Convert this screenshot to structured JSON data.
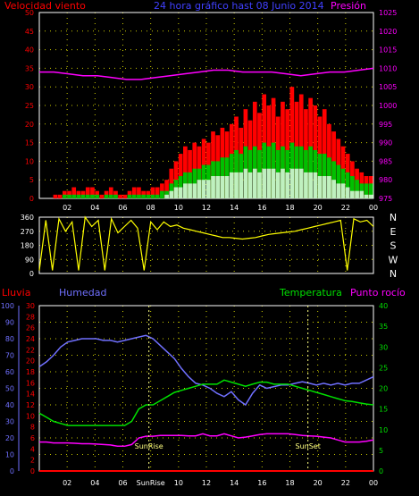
{
  "header": {
    "left_label": "Velocidad viento",
    "center_label": "24 hora gráfico hast 08 Junio 2014",
    "right_label": "Presión"
  },
  "panel3_labels": {
    "lluvia": "Lluvia",
    "humedad": "Humedad",
    "temperatura": "Temperatura",
    "punto_rocio": "Punto rocío"
  },
  "colors": {
    "wind": "#ff0000",
    "gust_green": "#00c000",
    "white_bars": "#ffffff",
    "pale_green": "#c0f0c0",
    "pressure": "#ff00ff",
    "direction": "#ffff00",
    "humidity": "#7070ff",
    "temperature": "#00e000",
    "dewpoint": "#ff00ff",
    "rain": "#ff0000",
    "sun": "#ffff80",
    "grid": "#ffff00",
    "axis": "#ffffff"
  },
  "chart_data": [
    {
      "type": "bar",
      "panel": "wind_pressure",
      "x_tick_labels": [
        "02",
        "04",
        "06",
        "08",
        "10",
        "12",
        "14",
        "16",
        "18",
        "20",
        "22",
        "00"
      ],
      "y_left_ticks": [
        "0",
        "5",
        "10",
        "15",
        "20",
        "25",
        "30",
        "35",
        "40",
        "45",
        "50"
      ],
      "y_right_ticks": [
        "975",
        "980",
        "985",
        "990",
        "995",
        "1000",
        "1005",
        "1010",
        "1015",
        "1020",
        "1025"
      ],
      "ylim_left": [
        0,
        50
      ],
      "ylim_right": [
        975,
        1025
      ],
      "series": [
        {
          "name": "Velocidad viento",
          "axis": "left",
          "values": [
            0,
            0,
            0,
            1,
            1,
            2,
            2,
            3,
            2,
            2,
            3,
            3,
            2,
            1,
            2,
            3,
            2,
            1,
            1,
            2,
            3,
            3,
            2,
            2,
            3,
            3,
            4,
            5,
            8,
            10,
            12,
            14,
            13,
            15,
            14,
            16,
            15,
            18,
            17,
            19,
            18,
            20,
            22,
            19,
            24,
            21,
            26,
            23,
            28,
            25,
            27,
            22,
            26,
            24,
            30,
            26,
            28,
            24,
            27,
            25,
            22,
            24,
            20,
            18,
            16,
            14,
            12,
            10,
            8,
            7,
            6,
            6
          ]
        },
        {
          "name": "",
          "axis": "left",
          "values": [
            0,
            0,
            0,
            0,
            0,
            1,
            1,
            1,
            1,
            1,
            1,
            1,
            1,
            0,
            1,
            1,
            1,
            0,
            0,
            1,
            1,
            1,
            1,
            1,
            1,
            1,
            2,
            2,
            4,
            5,
            6,
            7,
            7,
            8,
            8,
            9,
            9,
            10,
            10,
            11,
            11,
            12,
            13,
            12,
            14,
            13,
            14,
            13,
            15,
            14,
            15,
            13,
            14,
            13,
            15,
            14,
            14,
            13,
            14,
            13,
            12,
            12,
            11,
            10,
            9,
            8,
            7,
            6,
            5,
            4,
            4,
            4
          ]
        },
        {
          "name": "",
          "axis": "left",
          "values": [
            0,
            0,
            0,
            0,
            0,
            0,
            0,
            0,
            0,
            0,
            0,
            0,
            0,
            0,
            0,
            0,
            0,
            0,
            0,
            0,
            0,
            0,
            0,
            0,
            0,
            0,
            0,
            1,
            2,
            3,
            3,
            4,
            4,
            4,
            5,
            5,
            5,
            6,
            6,
            6,
            6,
            7,
            7,
            7,
            8,
            7,
            8,
            7,
            8,
            8,
            8,
            7,
            8,
            7,
            8,
            8,
            8,
            7,
            7,
            7,
            6,
            6,
            6,
            5,
            4,
            4,
            3,
            2,
            2,
            2,
            1,
            1
          ]
        },
        {
          "name": "Presión",
          "axis": "right",
          "values": [
            1009,
            1009,
            1008.5,
            1008,
            1008,
            1007.5,
            1007,
            1007,
            1007.5,
            1008,
            1008.5,
            1009,
            1009.5,
            1009.5,
            1009,
            1009,
            1009,
            1008.5,
            1008,
            1008.5,
            1009,
            1009,
            1009.5,
            1010
          ]
        }
      ]
    },
    {
      "type": "line",
      "panel": "wind_direction",
      "y_left_ticks": [
        "0",
        "90",
        "180",
        "270",
        "360"
      ],
      "y_right_labels": [
        "N",
        "W",
        "S",
        "E",
        "N"
      ],
      "ylim": [
        0,
        360
      ],
      "series": [
        {
          "name": "",
          "values": [
            20,
            340,
            20,
            350,
            270,
            330,
            20,
            360,
            300,
            340,
            20,
            350,
            260,
            300,
            340,
            290,
            20,
            330,
            280,
            330,
            300,
            310,
            290,
            280,
            270,
            260,
            250,
            240,
            230,
            230,
            225,
            220,
            225,
            230,
            240,
            250,
            255,
            260,
            265,
            270,
            280,
            290,
            300,
            310,
            320,
            330,
            340,
            20,
            350,
            330,
            340,
            300
          ]
        }
      ]
    },
    {
      "type": "line",
      "panel": "temp_humidity_rain",
      "x_tick_labels": [
        "02",
        "04",
        "06",
        "SunRise",
        "10",
        "12",
        "14",
        "16",
        "18",
        "20",
        "22",
        "00"
      ],
      "annotations": [
        "SunRise",
        "SunSet"
      ],
      "y_left_humidity_ticks": [
        "0",
        "10",
        "20",
        "30",
        "40",
        "50",
        "60",
        "70",
        "80",
        "90",
        "100"
      ],
      "y_left_rain_ticks": [
        "0",
        "2",
        "4",
        "6",
        "8",
        "10",
        "12",
        "14",
        "16",
        "18",
        "20",
        "22",
        "24",
        "26",
        "28",
        "30"
      ],
      "y_right_temp_ticks": [
        "0",
        "5",
        "10",
        "15",
        "20",
        "25",
        "30",
        "35",
        "40"
      ],
      "series": [
        {
          "name": "Humedad",
          "axis": "humidity",
          "values": [
            63,
            66,
            70,
            75,
            78,
            79,
            80,
            80,
            80,
            79,
            79,
            78,
            79,
            80,
            81,
            82,
            80,
            76,
            72,
            68,
            62,
            57,
            53,
            52,
            50,
            47,
            45,
            48,
            43,
            40,
            47,
            52,
            50,
            51,
            52,
            52,
            53,
            54,
            53,
            52,
            53,
            52,
            53,
            52,
            53,
            53,
            55,
            57
          ]
        },
        {
          "name": "Temperatura",
          "axis": "temp",
          "values": [
            14,
            13,
            12,
            11.5,
            11,
            11,
            11,
            11,
            11,
            11,
            11,
            11,
            11,
            12,
            15,
            16,
            16,
            17,
            18,
            19,
            19.5,
            20,
            20.5,
            21,
            21,
            21,
            22,
            21.5,
            21,
            20.5,
            21,
            21.5,
            21.5,
            21,
            21,
            21,
            20.5,
            20,
            19.5,
            19,
            18.5,
            18,
            17.5,
            17,
            16.8,
            16.5,
            16.2,
            16
          ]
        },
        {
          "name": "Punto rocío",
          "axis": "temp",
          "values": [
            7,
            7,
            6.8,
            6.8,
            6.8,
            6.7,
            6.6,
            6.6,
            6.5,
            6.4,
            6.3,
            6,
            6,
            6.4,
            8,
            8.4,
            8.4,
            8.6,
            8.6,
            8.6,
            8.6,
            8.5,
            8.5,
            9,
            8.5,
            8.5,
            9,
            8.5,
            8,
            8.2,
            8.5,
            8.8,
            9,
            9,
            9,
            9,
            8.8,
            8.6,
            8.5,
            8.4,
            8.2,
            8,
            7.5,
            7,
            7,
            7,
            7.2,
            7.5
          ]
        },
        {
          "name": "Lluvia",
          "axis": "rain",
          "values": [
            0,
            0,
            0,
            0,
            0,
            0,
            0,
            0,
            0,
            0,
            0,
            0,
            0,
            0,
            0,
            0,
            0,
            0,
            0,
            0,
            0,
            0,
            0,
            0,
            0,
            0,
            0,
            0,
            0,
            0,
            0,
            0,
            0,
            0,
            0,
            0,
            0,
            0,
            0,
            0,
            0,
            0,
            0,
            0,
            0,
            0,
            0,
            0
          ]
        }
      ]
    }
  ]
}
